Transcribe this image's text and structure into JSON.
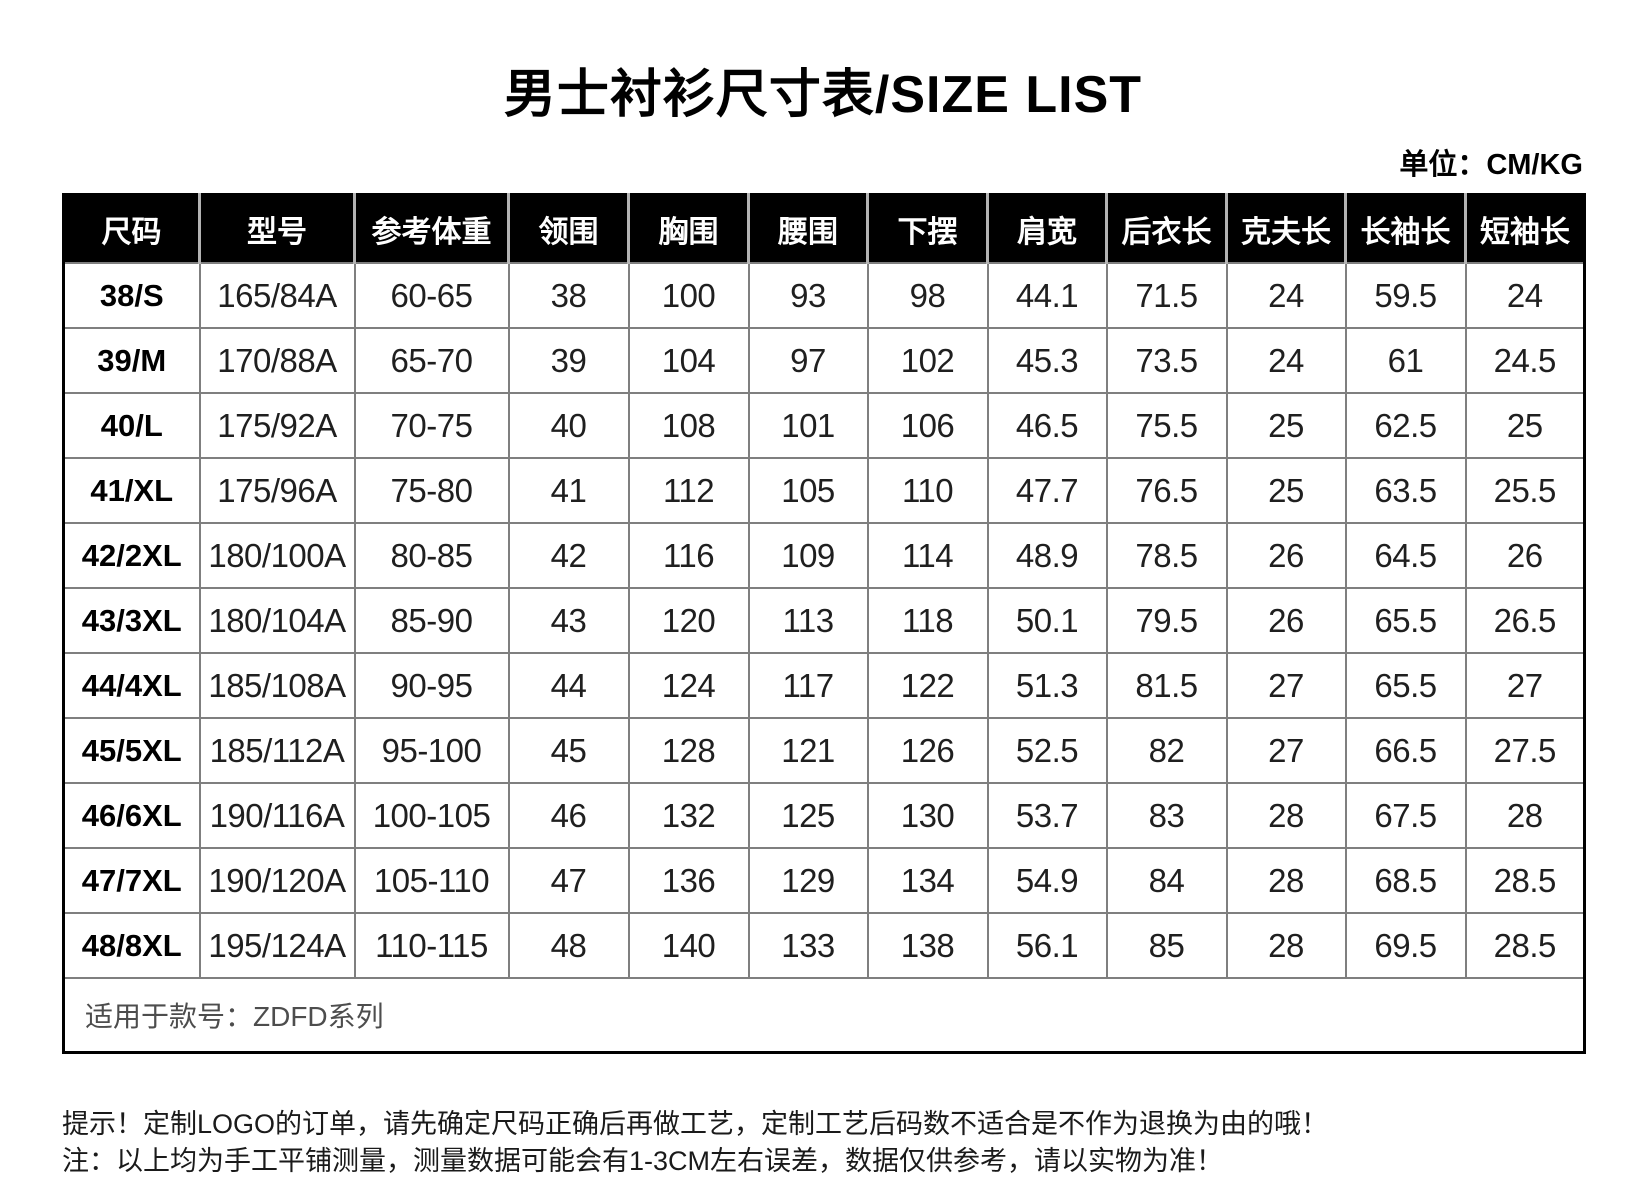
{
  "page": {
    "title": "男士衬衫尺寸表/SIZE LIST",
    "unit_label": "单位：CM/KG"
  },
  "table": {
    "columns": [
      "尺码",
      "型号",
      "参考体重",
      "领围",
      "胸围",
      "腰围",
      "下摆",
      "肩宽",
      "后衣长",
      "克夫长",
      "长袖长",
      "短袖长"
    ],
    "rows": [
      [
        "38/S",
        "165/84A",
        "60-65",
        "38",
        "100",
        "93",
        "98",
        "44.1",
        "71.5",
        "24",
        "59.5",
        "24"
      ],
      [
        "39/M",
        "170/88A",
        "65-70",
        "39",
        "104",
        "97",
        "102",
        "45.3",
        "73.5",
        "24",
        "61",
        "24.5"
      ],
      [
        "40/L",
        "175/92A",
        "70-75",
        "40",
        "108",
        "101",
        "106",
        "46.5",
        "75.5",
        "25",
        "62.5",
        "25"
      ],
      [
        "41/XL",
        "175/96A",
        "75-80",
        "41",
        "112",
        "105",
        "110",
        "47.7",
        "76.5",
        "25",
        "63.5",
        "25.5"
      ],
      [
        "42/2XL",
        "180/100A",
        "80-85",
        "42",
        "116",
        "109",
        "114",
        "48.9",
        "78.5",
        "26",
        "64.5",
        "26"
      ],
      [
        "43/3XL",
        "180/104A",
        "85-90",
        "43",
        "120",
        "113",
        "118",
        "50.1",
        "79.5",
        "26",
        "65.5",
        "26.5"
      ],
      [
        "44/4XL",
        "185/108A",
        "90-95",
        "44",
        "124",
        "117",
        "122",
        "51.3",
        "81.5",
        "27",
        "65.5",
        "27"
      ],
      [
        "45/5XL",
        "185/112A",
        "95-100",
        "45",
        "128",
        "121",
        "126",
        "52.5",
        "82",
        "27",
        "66.5",
        "27.5"
      ],
      [
        "46/6XL",
        "190/116A",
        "100-105",
        "46",
        "132",
        "125",
        "130",
        "53.7",
        "83",
        "28",
        "67.5",
        "28"
      ],
      [
        "47/7XL",
        "190/120A",
        "105-110",
        "47",
        "136",
        "129",
        "134",
        "54.9",
        "84",
        "28",
        "68.5",
        "28.5"
      ],
      [
        "48/8XL",
        "195/124A",
        "110-115",
        "48",
        "140",
        "133",
        "138",
        "56.1",
        "85",
        "28",
        "69.5",
        "28.5"
      ]
    ],
    "footer_note": "适用于款号：ZDFD系列"
  },
  "notes": {
    "line1": "提示！定制LOGO的订单，请先确定尺码正确后再做工艺，定制工艺后码数不适合是不作为退换为由的哦！",
    "line2": "注：以上均为手工平铺测量，测量数据可能会有1-3CM左右误差，数据仅供参考，请以实物为准！"
  },
  "colors": {
    "header_bg": "#000000",
    "header_text": "#ffffff",
    "header_divider": "#b3b3b3",
    "grid_line": "#7f7f7f",
    "outer_border": "#000000",
    "body_text": "#1f1f1f",
    "footer_text": "#4d4d4d"
  }
}
